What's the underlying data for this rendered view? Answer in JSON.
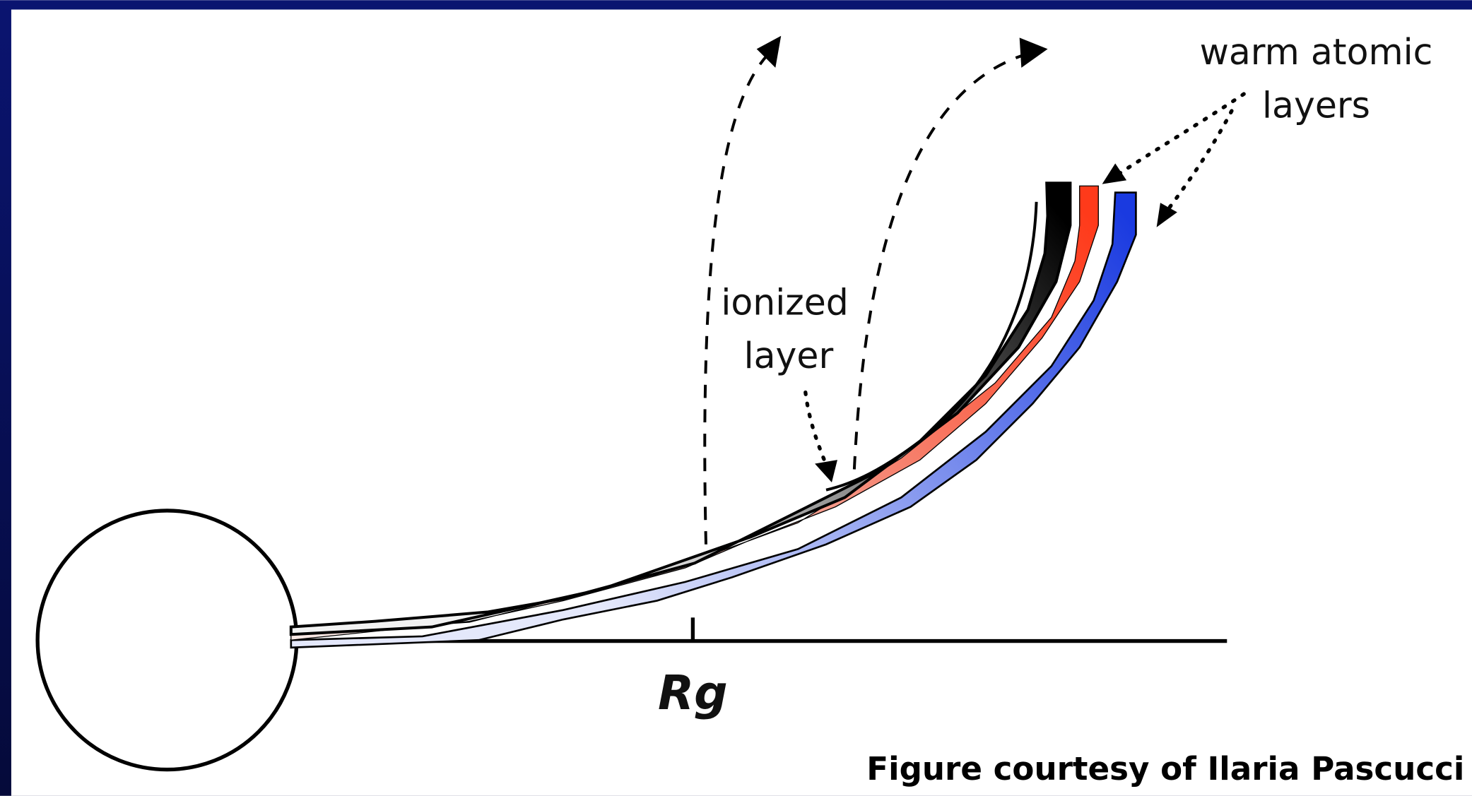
{
  "labels": {
    "warm_atomic": [
      "warm atomic",
      "layers"
    ],
    "ionized": [
      "ionized",
      "layer"
    ],
    "axis": "Rg"
  },
  "credit": "Figure courtesy of Ilaria Pascucci"
}
